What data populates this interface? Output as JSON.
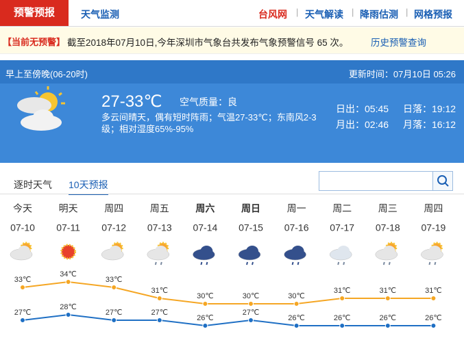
{
  "nav": {
    "active": "预警预报",
    "tab": "天气监测",
    "links": [
      "台风网",
      "天气解读",
      "降雨估测",
      "网格预报"
    ]
  },
  "alert": {
    "status": "【当前无预警】",
    "text": "截至2018年07月10日,今年深圳市气象台共发布气象预警信号 65 次。",
    "link": "历史预警查询"
  },
  "today": {
    "period": "早上至傍晚(06-20时)",
    "updated": "更新时间：07月10日 05:26",
    "temp": "27-33℃",
    "air": "空气质量：良",
    "desc": "多云间晴天，偶有短时阵雨；气温27-33℃；东南风2-3级；相对湿度65%-95%",
    "sunrise": "日出：05:45",
    "sunset": "日落：19:12",
    "moonrise": "月出：02:46",
    "moonset": "月落：16:12"
  },
  "tabs": [
    "逐时天气",
    "10天预报"
  ],
  "chart_data": {
    "type": "line",
    "weekdays": [
      "今天",
      "明天",
      "周四",
      "周五",
      "周六",
      "周日",
      "周一",
      "周二",
      "周三",
      "周四"
    ],
    "categories": [
      "07-10",
      "07-11",
      "07-12",
      "07-13",
      "07-14",
      "07-15",
      "07-16",
      "07-17",
      "07-18",
      "07-19"
    ],
    "series": [
      {
        "color": "#f5a623",
        "values": [
          33,
          34,
          33,
          31,
          30,
          30,
          30,
          31,
          31,
          31
        ],
        "value_labels": [
          "33℃",
          "34℃",
          "33℃",
          "31℃",
          "30℃",
          "30℃",
          "30℃",
          "31℃",
          "31℃",
          "31℃"
        ]
      },
      {
        "color": "#1e6fc4",
        "values": [
          27,
          28,
          27,
          27,
          26,
          27,
          26,
          26,
          26,
          26
        ],
        "value_labels": [
          "27℃",
          "28℃",
          "27℃",
          "27℃",
          "26℃",
          "27℃",
          "26℃",
          "26℃",
          "26℃",
          "26℃"
        ]
      }
    ]
  }
}
